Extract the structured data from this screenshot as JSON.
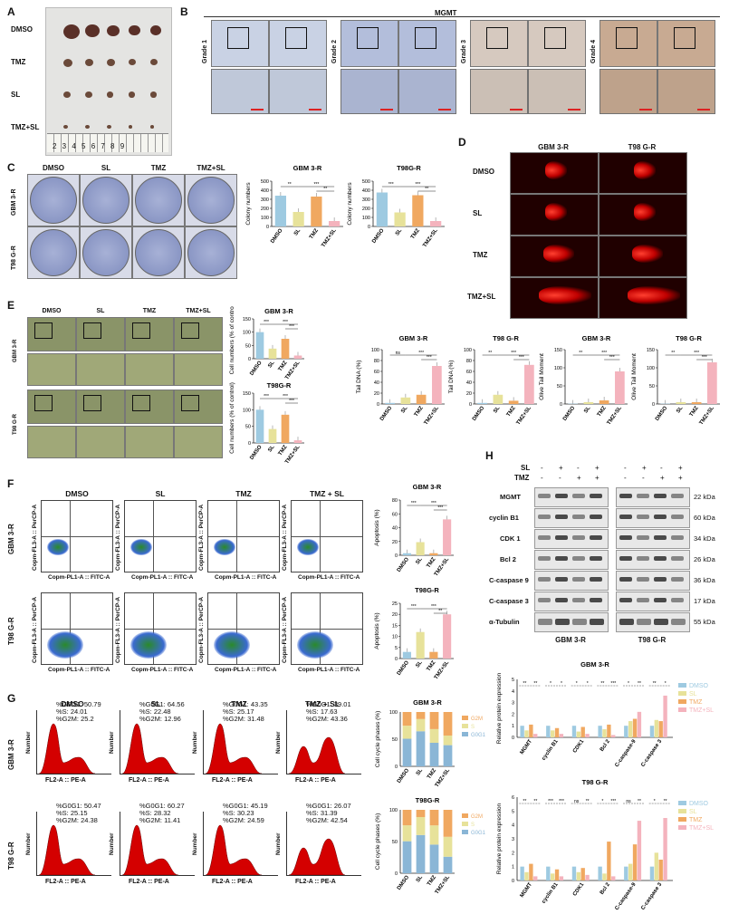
{
  "panels": {
    "A": {
      "label": "A",
      "rows": [
        "DMSO",
        "TMZ",
        "SL",
        "TMZ+SL"
      ],
      "ruler": "2  3  4  5  6  7  8  9"
    },
    "B": {
      "label": "B",
      "title": "MGMT",
      "grades": [
        "Grade 1",
        "Grade 2",
        "Grade 3",
        "Grade 4"
      ]
    },
    "C": {
      "label": "C",
      "cols": [
        "DMSO",
        "SL",
        "TMZ",
        "TMZ+SL"
      ],
      "rows": [
        "GBM 3-R",
        "T98 G-R"
      ]
    },
    "D": {
      "label": "D",
      "cols": [
        "GBM 3-R",
        "T98 G-R"
      ],
      "rows": [
        "DMSO",
        "SL",
        "TMZ",
        "TMZ+SL"
      ]
    },
    "E": {
      "label": "E",
      "cols": [
        "DMSO",
        "SL",
        "TMZ",
        "TMZ+SL"
      ],
      "rows": [
        "GBM 3-R",
        "T98 G-R"
      ]
    },
    "F": {
      "label": "F",
      "cols": [
        "DMSO",
        "SL",
        "TMZ",
        "TMZ + SL"
      ],
      "rows": [
        "GBM 3-R",
        "T98 G-R"
      ],
      "xaxis": "Copm-PL1-A :: FITC-A",
      "yaxis": "Copm-FL3-A :: PerCP-A"
    },
    "G": {
      "label": "G",
      "cols": [
        "DMSO",
        "SL",
        "TMZ",
        "TMZ + SL"
      ],
      "rows": [
        "GBM 3-R",
        "T98 G-R"
      ],
      "xaxis": "FL2-A :: PE-A",
      "yaxis": "Number",
      "stats": [
        [
          "%G0G1: 50.79\n%S: 24.01\n%G2M: 25.2",
          "%G0G1: 64.56\n%S: 22.48\n%G2M: 12.96",
          "%G0G1: 43.35\n%S: 25.17\n%G2M: 31.48",
          "%G0G1: 39.01\n%S: 17.63\n%G2M: 43.36"
        ],
        [
          "%G0G1: 50.47\n%S: 25.15\n%G2M: 24.38",
          "%G0G1: 60.27\n%S: 28.32\n%G2M: 11.41",
          "%G0G1: 45.19\n%S: 30.23\n%G2M: 24.59",
          "%G0G1: 26.07\n%S: 31.39\n%G2M: 42.54"
        ]
      ]
    },
    "H": {
      "label": "H",
      "sl": "SL",
      "tmz": "TMZ",
      "signs_sl": [
        "-",
        "+",
        "-",
        "+",
        "-",
        "+",
        "-",
        "+"
      ],
      "signs_tmz": [
        "-",
        "-",
        "+",
        "+",
        "-",
        "-",
        "+",
        "+"
      ],
      "proteins": [
        "MGMT",
        "cyclin B1",
        "CDK 1",
        "Bcl 2",
        "C-caspase 9",
        "C-caspase 3",
        "α-Tubulin"
      ],
      "kda": [
        "22 kDa",
        "60 kDa",
        "34 kDa",
        "26 kDa",
        "36 kDa",
        "17 kDa",
        "55 kDa"
      ],
      "cells": [
        "GBM 3-R",
        "T98 G-R"
      ]
    }
  },
  "chart_data": [
    {
      "id": "C-GBM",
      "type": "bar",
      "title": "GBM 3-R",
      "ylabel": "Colony numbers",
      "categories": [
        "DMSO",
        "SL",
        "TMZ",
        "TMZ+SL"
      ],
      "values": [
        340,
        160,
        330,
        60
      ],
      "ylim": [
        0,
        500
      ],
      "yticks": [
        0,
        100,
        200,
        300,
        400,
        500
      ],
      "sig": [
        "**",
        "**",
        "***"
      ],
      "colors": [
        "#9ecae1",
        "#e7e29a",
        "#f0a860",
        "#f4b3bd"
      ]
    },
    {
      "id": "C-T98",
      "type": "bar",
      "title": "T98G-R",
      "ylabel": "Colony numbers",
      "categories": [
        "DMSO",
        "SL",
        "TMZ",
        "TMZ+SL"
      ],
      "values": [
        375,
        155,
        345,
        60
      ],
      "ylim": [
        0,
        500
      ],
      "yticks": [
        0,
        100,
        200,
        300,
        400,
        500
      ],
      "sig": [
        "***",
        "**",
        "***"
      ],
      "colors": [
        "#9ecae1",
        "#e7e29a",
        "#f0a860",
        "#f4b3bd"
      ]
    },
    {
      "id": "E-GBM",
      "type": "bar",
      "title": "GBM 3-R",
      "ylabel": "Cell numbers (% of control)",
      "categories": [
        "DMSO",
        "SL",
        "TMZ",
        "TMZ+SL"
      ],
      "values": [
        100,
        38,
        75,
        12
      ],
      "ylim": [
        0,
        150
      ],
      "yticks": [
        0,
        50,
        100,
        150
      ],
      "sig": [
        "***",
        "***",
        "***"
      ],
      "colors": [
        "#9ecae1",
        "#e7e29a",
        "#f0a860",
        "#f4b3bd"
      ]
    },
    {
      "id": "E-T98",
      "type": "bar",
      "title": "T98G-R",
      "ylabel": "Cell numbers (% of control)",
      "categories": [
        "DMSO",
        "SL",
        "TMZ",
        "TMZ+SL"
      ],
      "values": [
        100,
        42,
        85,
        8
      ],
      "ylim": [
        0,
        150
      ],
      "yticks": [
        0,
        50,
        100,
        150
      ],
      "sig": [
        "***",
        "***",
        "***"
      ],
      "colors": [
        "#9ecae1",
        "#e7e29a",
        "#f0a860",
        "#f4b3bd"
      ]
    },
    {
      "id": "D-GBM-tail",
      "type": "bar",
      "title": "GBM 3-R",
      "ylabel": "Tail DNA (%)",
      "categories": [
        "DMSO",
        "SL",
        "TMZ",
        "TMZ+SL"
      ],
      "values": [
        2,
        12,
        17,
        70
      ],
      "ylim": [
        0,
        100
      ],
      "yticks": [
        0,
        20,
        40,
        60,
        80,
        100
      ],
      "sig": [
        "ns",
        "***",
        "***"
      ],
      "colors": [
        "#9ecae1",
        "#e7e29a",
        "#f0a860",
        "#f4b3bd"
      ]
    },
    {
      "id": "D-T98-tail",
      "type": "bar",
      "title": "T98 G-R",
      "ylabel": "Tail DNA (%)",
      "categories": [
        "DMSO",
        "SL",
        "TMZ",
        "TMZ+SL"
      ],
      "values": [
        2,
        17,
        6,
        72
      ],
      "ylim": [
        0,
        100
      ],
      "yticks": [
        0,
        20,
        40,
        60,
        80,
        100
      ],
      "sig": [
        "**",
        "***",
        "***"
      ],
      "colors": [
        "#9ecae1",
        "#e7e29a",
        "#f0a860",
        "#f4b3bd"
      ]
    },
    {
      "id": "D-GBM-olive",
      "type": "bar",
      "title": "GBM 3-R",
      "ylabel": "Olive Tail Moment",
      "categories": [
        "DMSO",
        "SL",
        "TMZ",
        "TMZ+SL"
      ],
      "values": [
        1,
        5,
        10,
        90
      ],
      "ylim": [
        0,
        150
      ],
      "yticks": [
        0,
        50,
        100,
        150
      ],
      "sig": [
        "**",
        "***",
        "***"
      ],
      "colors": [
        "#9ecae1",
        "#e7e29a",
        "#f0a860",
        "#f4b3bd"
      ]
    },
    {
      "id": "D-T98-olive",
      "type": "bar",
      "title": "T98 G-R",
      "ylabel": "Olive Tail Moment",
      "categories": [
        "DMSO",
        "SL",
        "TMZ",
        "TMZ+SL"
      ],
      "values": [
        1,
        5,
        5,
        115
      ],
      "ylim": [
        0,
        150
      ],
      "yticks": [
        0,
        50,
        100,
        150
      ],
      "sig": [
        "**",
        "***",
        "***"
      ],
      "colors": [
        "#9ecae1",
        "#e7e29a",
        "#f0a860",
        "#f4b3bd"
      ]
    },
    {
      "id": "F-GBM",
      "type": "bar",
      "title": "GBM 3-R",
      "ylabel": "Apoptosis (%)",
      "categories": [
        "DMSO",
        "SL",
        "TMZ",
        "TMZ+SL"
      ],
      "values": [
        3,
        19,
        3,
        52
      ],
      "ylim": [
        0,
        80
      ],
      "yticks": [
        0,
        20,
        40,
        60,
        80
      ],
      "sig": [
        "***",
        "***",
        "***"
      ],
      "colors": [
        "#9ecae1",
        "#e7e29a",
        "#f0a860",
        "#f4b3bd"
      ]
    },
    {
      "id": "F-T98",
      "type": "bar",
      "title": "T98G-R",
      "ylabel": "Apoptosis (%)",
      "categories": [
        "DMSO",
        "SL",
        "TMZ",
        "TMZ+SL"
      ],
      "values": [
        3,
        12,
        3,
        20
      ],
      "ylim": [
        0,
        25
      ],
      "yticks": [
        0,
        5,
        10,
        15,
        20,
        25
      ],
      "sig": [
        "***",
        "**",
        "***"
      ],
      "colors": [
        "#9ecae1",
        "#e7e29a",
        "#f0a860",
        "#f4b3bd"
      ]
    },
    {
      "id": "G-GBM",
      "type": "stacked-bar",
      "title": "GBM 3-R",
      "ylabel": "Cell cycle phases (%)",
      "categories": [
        "DMSO",
        "SL",
        "TMZ",
        "TMZ+SL"
      ],
      "series": [
        {
          "name": "G0G1",
          "color": "#8ab6d6",
          "values": [
            50.79,
            64.56,
            43.35,
            39.01
          ]
        },
        {
          "name": "S",
          "color": "#e7e29a",
          "values": [
            24.01,
            22.48,
            25.17,
            17.63
          ]
        },
        {
          "name": "G2M",
          "color": "#f0a860",
          "values": [
            25.2,
            12.96,
            31.48,
            43.36
          ]
        }
      ],
      "ylim": [
        0,
        100
      ],
      "yticks": [
        0,
        50,
        100
      ]
    },
    {
      "id": "G-T98",
      "type": "stacked-bar",
      "title": "T98G-R",
      "ylabel": "Cell cycle phases (%)",
      "categories": [
        "DMSO",
        "SL",
        "TMZ",
        "TMZ+SL"
      ],
      "series": [
        {
          "name": "G0G1",
          "color": "#8ab6d6",
          "values": [
            50.47,
            60.27,
            45.19,
            26.07
          ]
        },
        {
          "name": "S",
          "color": "#e7e29a",
          "values": [
            25.15,
            28.32,
            30.23,
            31.39
          ]
        },
        {
          "name": "G2M",
          "color": "#f0a860",
          "values": [
            24.38,
            11.41,
            24.59,
            42.54
          ]
        }
      ],
      "ylim": [
        0,
        100
      ],
      "yticks": [
        0,
        50,
        100
      ]
    },
    {
      "id": "H-GBM",
      "type": "grouped-bar",
      "title": "GBM 3-R",
      "ylabel": "Relative protein expression",
      "categories": [
        "MGMT",
        "cyclin B1",
        "CDK1",
        "Bcl 2",
        "C-caspase-9",
        "C-caspase 3"
      ],
      "series": [
        {
          "name": "DMSO",
          "color": "#9ecae1",
          "values": [
            1,
            1,
            1,
            1,
            1,
            1
          ]
        },
        {
          "name": "SL",
          "color": "#e7e29a",
          "values": [
            0.6,
            0.6,
            0.5,
            0.7,
            1.4,
            1.5
          ]
        },
        {
          "name": "TMZ",
          "color": "#f0a860",
          "values": [
            1.1,
            0.8,
            0.9,
            1.1,
            1.6,
            1.4
          ]
        },
        {
          "name": "TMZ+SL",
          "color": "#f4b3bd",
          "values": [
            0.3,
            0.3,
            0.3,
            0.2,
            2.2,
            3.6
          ]
        }
      ],
      "ylim": [
        0,
        5
      ],
      "yticks": [
        0,
        1,
        2,
        3,
        4,
        5
      ],
      "sig": [
        [
          "**",
          "**"
        ],
        [
          "*",
          "*"
        ],
        [
          "*",
          "*"
        ],
        [
          "**",
          "***"
        ],
        [
          "*",
          "**"
        ],
        [
          "**",
          "*"
        ]
      ]
    },
    {
      "id": "H-T98",
      "type": "grouped-bar",
      "title": "T98 G-R",
      "ylabel": "Relative protein expression",
      "categories": [
        "MGMT",
        "cyclin B1",
        "CDK1",
        "Bcl 2",
        "C-caspase-9",
        "C-caspase 3"
      ],
      "series": [
        {
          "name": "DMSO",
          "color": "#9ecae1",
          "values": [
            1,
            1,
            1,
            1,
            1,
            1
          ]
        },
        {
          "name": "SL",
          "color": "#e7e29a",
          "values": [
            0.6,
            0.5,
            0.6,
            0.5,
            1.2,
            2
          ]
        },
        {
          "name": "TMZ",
          "color": "#f0a860",
          "values": [
            1.2,
            0.8,
            0.9,
            2.8,
            2.6,
            1.5
          ]
        },
        {
          "name": "TMZ+SL",
          "color": "#f4b3bd",
          "values": [
            0.3,
            0.3,
            0.4,
            0.3,
            4.3,
            4.5
          ]
        }
      ],
      "ylim": [
        0,
        6
      ],
      "yticks": [
        0,
        1,
        2,
        3,
        4,
        5,
        6
      ],
      "sig": [
        [
          "**",
          "**"
        ],
        [
          "***",
          "***"
        ],
        [
          "ns",
          "**"
        ],
        [
          "*",
          "***"
        ],
        [
          "ns",
          "**"
        ],
        [
          "*",
          "**"
        ]
      ]
    }
  ]
}
